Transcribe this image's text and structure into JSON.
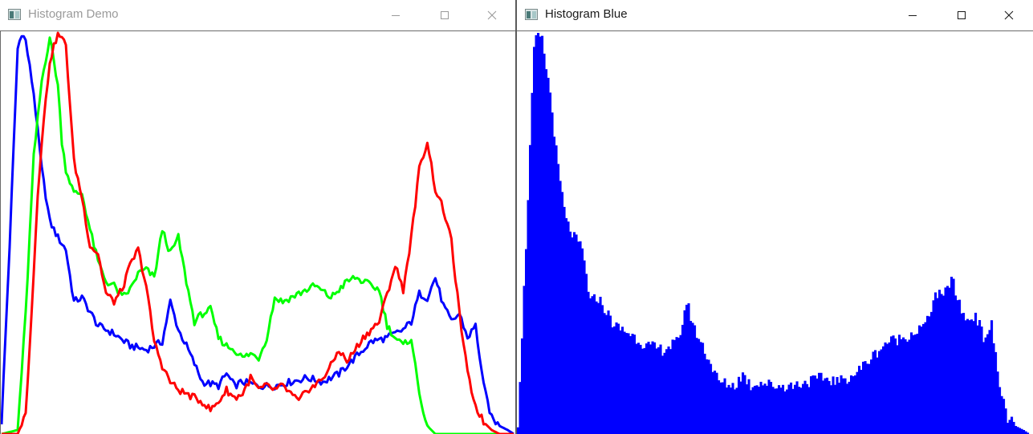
{
  "windows": [
    {
      "title": "Histogram Demo",
      "controls": [
        "minimize-icon",
        "maximize-icon",
        "close-icon"
      ],
      "active": false
    },
    {
      "title": "Histogram Blue",
      "controls": [
        "minimize-icon",
        "maximize-icon",
        "close-icon"
      ],
      "active": true
    }
  ],
  "colors": {
    "blue": "#0000ff",
    "green": "#00ff00",
    "red": "#ff0000",
    "inactive_title": "#9a9a9a",
    "active_title": "#1a1a1a"
  },
  "chart_data": [
    {
      "type": "line",
      "xlim": [
        0,
        255
      ],
      "ylim": [
        0,
        1
      ],
      "grid": false,
      "series": [
        {
          "color": "#0000ff",
          "x": [
            0,
            4,
            8,
            10,
            12,
            16,
            20,
            24,
            28,
            32,
            36,
            40,
            48,
            56,
            64,
            72,
            80,
            84,
            88,
            92,
            100,
            108,
            112,
            116,
            120,
            128,
            136,
            144,
            152,
            160,
            168,
            176,
            184,
            192,
            200,
            204,
            208,
            212,
            216,
            220,
            224,
            228,
            232,
            236,
            240,
            244,
            248,
            252,
            255
          ],
          "y": [
            0.03,
            0.47,
            0.96,
            1.0,
            0.98,
            0.85,
            0.66,
            0.53,
            0.49,
            0.46,
            0.33,
            0.34,
            0.27,
            0.25,
            0.22,
            0.21,
            0.23,
            0.33,
            0.26,
            0.22,
            0.13,
            0.12,
            0.15,
            0.12,
            0.13,
            0.12,
            0.12,
            0.13,
            0.14,
            0.13,
            0.15,
            0.19,
            0.23,
            0.24,
            0.26,
            0.28,
            0.35,
            0.34,
            0.39,
            0.32,
            0.28,
            0.3,
            0.24,
            0.27,
            0.12,
            0.04,
            0.02,
            0.01,
            0.0
          ]
        },
        {
          "color": "#00ff00",
          "x": [
            0,
            8,
            12,
            16,
            20,
            24,
            28,
            30,
            32,
            36,
            40,
            44,
            48,
            52,
            56,
            60,
            64,
            68,
            72,
            76,
            80,
            84,
            88,
            92,
            96,
            100,
            104,
            108,
            112,
            116,
            120,
            124,
            128,
            132,
            136,
            140,
            148,
            156,
            164,
            172,
            176,
            180,
            184,
            188,
            192,
            196,
            200,
            204,
            208,
            212,
            216,
            220,
            224,
            228,
            232,
            236,
            240,
            248,
            255
          ],
          "y": [
            0.0,
            0.01,
            0.3,
            0.69,
            0.88,
            0.99,
            0.87,
            0.73,
            0.66,
            0.6,
            0.6,
            0.51,
            0.43,
            0.38,
            0.37,
            0.34,
            0.36,
            0.4,
            0.41,
            0.39,
            0.51,
            0.45,
            0.49,
            0.38,
            0.28,
            0.3,
            0.31,
            0.24,
            0.22,
            0.21,
            0.19,
            0.2,
            0.19,
            0.24,
            0.34,
            0.33,
            0.35,
            0.37,
            0.34,
            0.38,
            0.39,
            0.38,
            0.37,
            0.36,
            0.27,
            0.24,
            0.22,
            0.24,
            0.1,
            0.02,
            0.0,
            0.0,
            0.0,
            0.0,
            0.0,
            0.0,
            0.0,
            0.0,
            0.0
          ]
        },
        {
          "color": "#ff0000",
          "x": [
            0,
            8,
            12,
            16,
            18,
            20,
            24,
            28,
            32,
            36,
            40,
            44,
            48,
            52,
            56,
            60,
            64,
            68,
            72,
            76,
            80,
            84,
            88,
            92,
            96,
            100,
            104,
            108,
            112,
            116,
            120,
            124,
            128,
            132,
            136,
            140,
            144,
            148,
            152,
            156,
            160,
            164,
            168,
            172,
            176,
            180,
            184,
            188,
            192,
            196,
            200,
            204,
            208,
            212,
            216,
            220,
            224,
            228,
            232,
            236,
            240,
            244,
            248,
            252,
            255
          ],
          "y": [
            0.0,
            0.0,
            0.05,
            0.4,
            0.6,
            0.73,
            0.93,
            1.0,
            0.97,
            0.68,
            0.59,
            0.47,
            0.45,
            0.35,
            0.33,
            0.36,
            0.42,
            0.46,
            0.37,
            0.23,
            0.17,
            0.13,
            0.11,
            0.1,
            0.09,
            0.08,
            0.06,
            0.08,
            0.11,
            0.09,
            0.1,
            0.14,
            0.11,
            0.12,
            0.11,
            0.12,
            0.1,
            0.08,
            0.11,
            0.12,
            0.14,
            0.17,
            0.21,
            0.18,
            0.21,
            0.24,
            0.26,
            0.28,
            0.35,
            0.42,
            0.36,
            0.49,
            0.66,
            0.73,
            0.61,
            0.56,
            0.48,
            0.3,
            0.15,
            0.07,
            0.03,
            0.01,
            0.0,
            0.0,
            0.0
          ]
        }
      ]
    },
    {
      "type": "bar",
      "xlim": [
        0,
        255
      ],
      "ylim": [
        0,
        1
      ],
      "grid": false,
      "series": [
        {
          "color": "#0000ff",
          "x": [
            0,
            4,
            8,
            10,
            12,
            16,
            20,
            24,
            28,
            32,
            36,
            40,
            48,
            56,
            64,
            72,
            80,
            84,
            88,
            92,
            100,
            108,
            112,
            116,
            120,
            128,
            136,
            144,
            152,
            160,
            168,
            176,
            184,
            192,
            200,
            204,
            208,
            212,
            216,
            220,
            224,
            228,
            232,
            236,
            240,
            244,
            248,
            252,
            255
          ],
          "y": [
            0.03,
            0.47,
            0.96,
            1.0,
            0.98,
            0.85,
            0.66,
            0.53,
            0.49,
            0.46,
            0.33,
            0.34,
            0.27,
            0.25,
            0.22,
            0.21,
            0.23,
            0.33,
            0.26,
            0.22,
            0.13,
            0.12,
            0.15,
            0.12,
            0.13,
            0.12,
            0.12,
            0.13,
            0.14,
            0.13,
            0.15,
            0.19,
            0.23,
            0.24,
            0.26,
            0.28,
            0.35,
            0.34,
            0.39,
            0.32,
            0.28,
            0.3,
            0.24,
            0.27,
            0.12,
            0.04,
            0.02,
            0.01,
            0.0
          ]
        }
      ]
    }
  ]
}
